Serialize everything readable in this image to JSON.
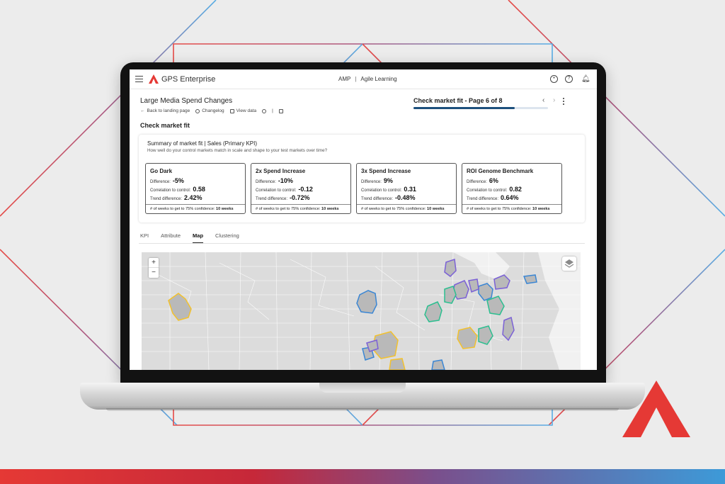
{
  "app": {
    "name": "GPS Enterprise",
    "nav_left": "AMP",
    "nav_right": "Agile Learning",
    "header_icons": [
      "account-icon",
      "help-icon",
      "bell-icon"
    ]
  },
  "page": {
    "title": "Large Media Spend Changes",
    "links": {
      "back": "Back to landing page",
      "changelog": "Changelog",
      "view_data": "View data"
    },
    "pager": {
      "label": "Check market fit - Page 6 of 8",
      "current": 6,
      "total": 8
    },
    "section_title": "Check market fit"
  },
  "summary": {
    "title": "Summary of market fit  |  Sales (Primary KPI)",
    "question": "How well do your control markets match in scale and shape to your test markets over time?",
    "labels": {
      "difference": "Difference:",
      "correlation": "Correlation to control:",
      "trend": "Trend difference:",
      "weeks": "# of weeks to get to 75% confidence:"
    },
    "cards": [
      {
        "name": "Go Dark",
        "difference": "-5%",
        "correlation": "0.58",
        "trend": "2.42%",
        "weeks": "10 weeks"
      },
      {
        "name": "2x Spend Increase",
        "difference": "-10%",
        "correlation": "-0.12",
        "trend": "-0.72%",
        "weeks": "10 weeks"
      },
      {
        "name": "3x Spend Increase",
        "difference": "9%",
        "correlation": "0.31",
        "trend": "-0.48%",
        "weeks": "10 weeks"
      },
      {
        "name": "ROI Genome Benchmark",
        "difference": "6%",
        "correlation": "0.82",
        "trend": "0.64%",
        "weeks": "10 weeks"
      }
    ]
  },
  "tabs": [
    {
      "label": "KPI",
      "active": false
    },
    {
      "label": "Attribute",
      "active": false
    },
    {
      "label": "Map",
      "active": true
    },
    {
      "label": "Clustering",
      "active": false
    }
  ],
  "map": {
    "zoom_in": "+",
    "zoom_out": "−",
    "region_colors": {
      "yellow": "#f2c12e",
      "blue": "#3a86d4",
      "purple": "#7b61d6",
      "teal": "#2bbf8f"
    }
  },
  "colors": {
    "brand_red": "#e53935",
    "progress": "#1c4f7c"
  }
}
